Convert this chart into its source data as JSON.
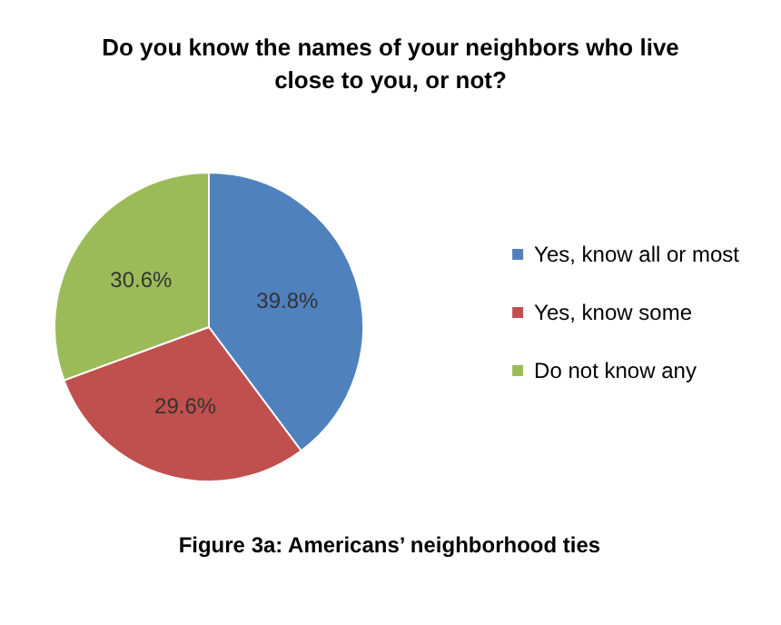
{
  "chart_data": {
    "type": "pie",
    "title": "Do you know the names of your neighbors who live\nclose to you, or not?",
    "categories": [
      "Yes, know all or most",
      "Yes, know some",
      "Do not know any"
    ],
    "values": [
      39.8,
      29.6,
      30.6
    ],
    "colors": [
      "#4f81bd",
      "#c0504d",
      "#9bbb59"
    ],
    "value_labels": [
      "39.8%",
      "29.6%",
      "30.6%"
    ],
    "legend": "right",
    "annotations": [
      "Figure 3a: Americans’ neighborhood ties"
    ]
  }
}
